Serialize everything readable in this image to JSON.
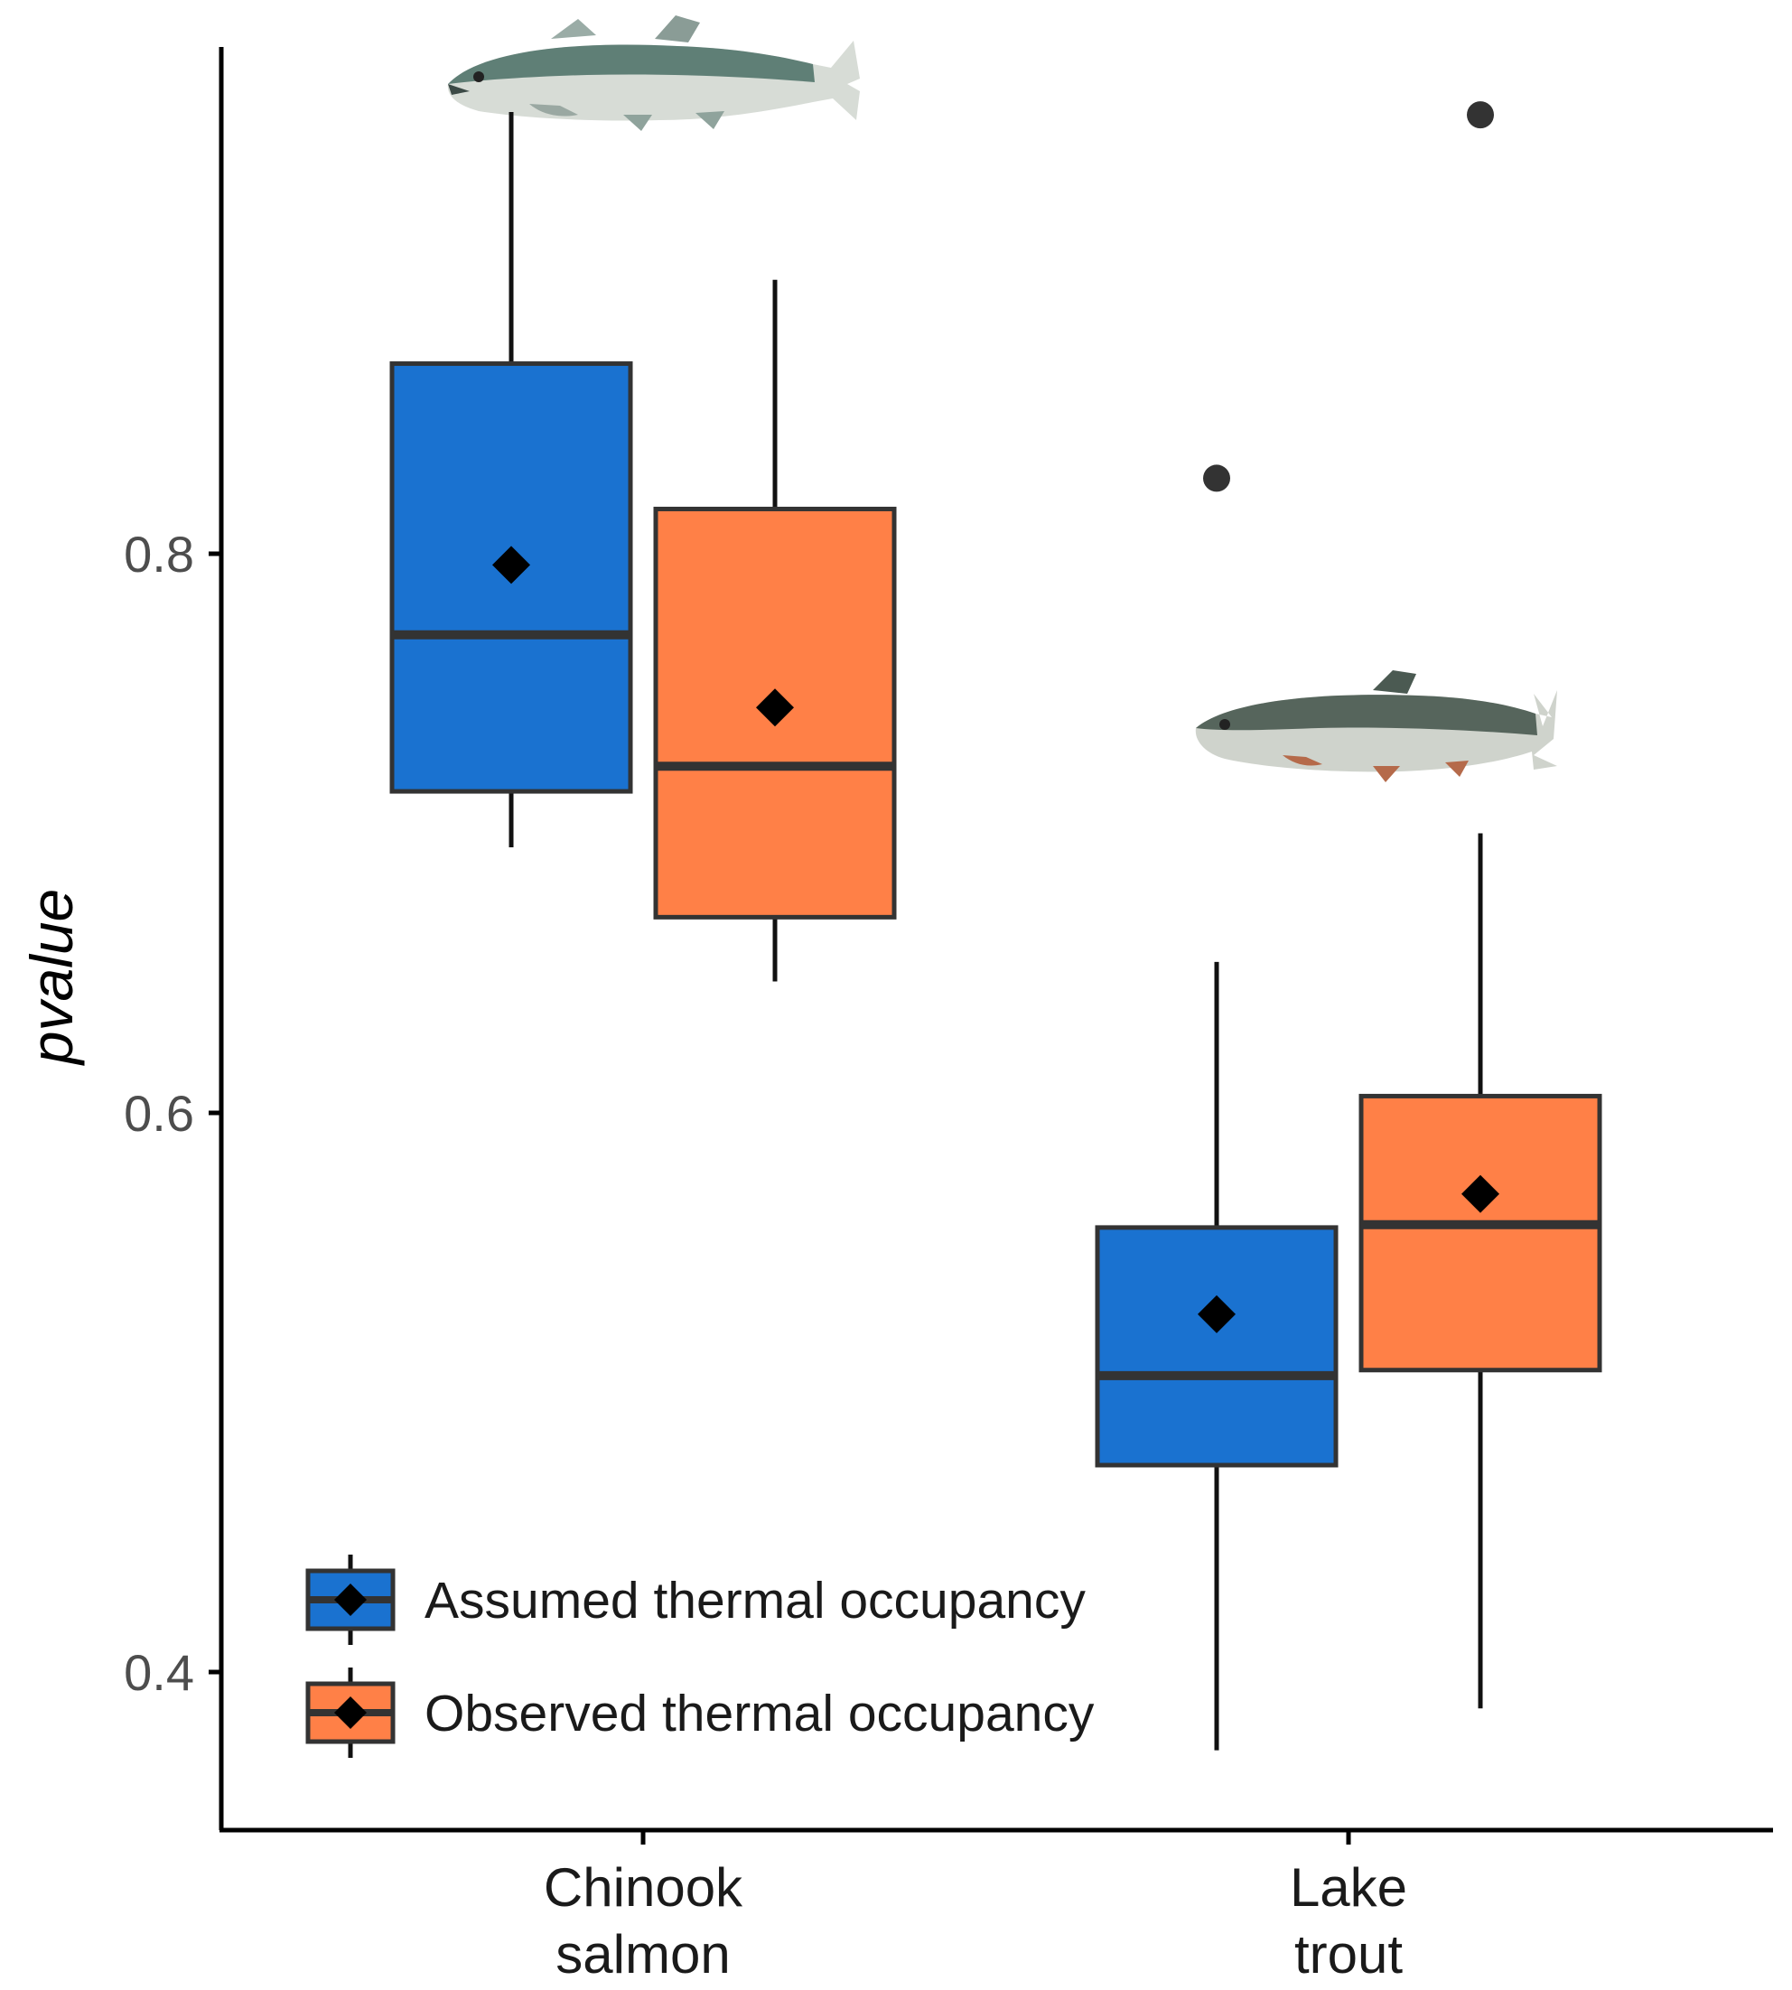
{
  "chart_data": {
    "type": "boxplot",
    "ylabel": "pvalue",
    "xlabel": "",
    "ylim": [
      0.345,
      0.98
    ],
    "yticks": [
      0.4,
      0.6,
      0.8
    ],
    "ytick_labels": [
      "0.4",
      "0.6",
      "0.8"
    ],
    "grid": false,
    "legend_position": "bottom-left",
    "categories": [
      {
        "lines": [
          "Chinook",
          "salmon"
        ]
      },
      {
        "lines": [
          "Lake",
          "trout"
        ]
      }
    ],
    "series": [
      {
        "name": "Assumed thermal occupancy",
        "color": "#1A72D0",
        "boxes": [
          {
            "whisker_low": 0.695,
            "q1": 0.715,
            "median": 0.771,
            "q3": 0.868,
            "whisker_high": 0.958,
            "mean": 0.796,
            "outliers": []
          },
          {
            "whisker_low": 0.372,
            "q1": 0.474,
            "median": 0.506,
            "q3": 0.559,
            "whisker_high": 0.654,
            "mean": 0.528,
            "outliers": [
              0.827
            ]
          }
        ]
      },
      {
        "name": "Observed thermal occupancy",
        "color": "#FF8047",
        "boxes": [
          {
            "whisker_low": 0.647,
            "q1": 0.67,
            "median": 0.724,
            "q3": 0.816,
            "whisker_high": 0.898,
            "mean": 0.745,
            "outliers": []
          },
          {
            "whisker_low": 0.387,
            "q1": 0.508,
            "median": 0.56,
            "q3": 0.606,
            "whisker_high": 0.7,
            "mean": 0.571,
            "outliers": [
              0.957
            ]
          }
        ]
      }
    ]
  }
}
